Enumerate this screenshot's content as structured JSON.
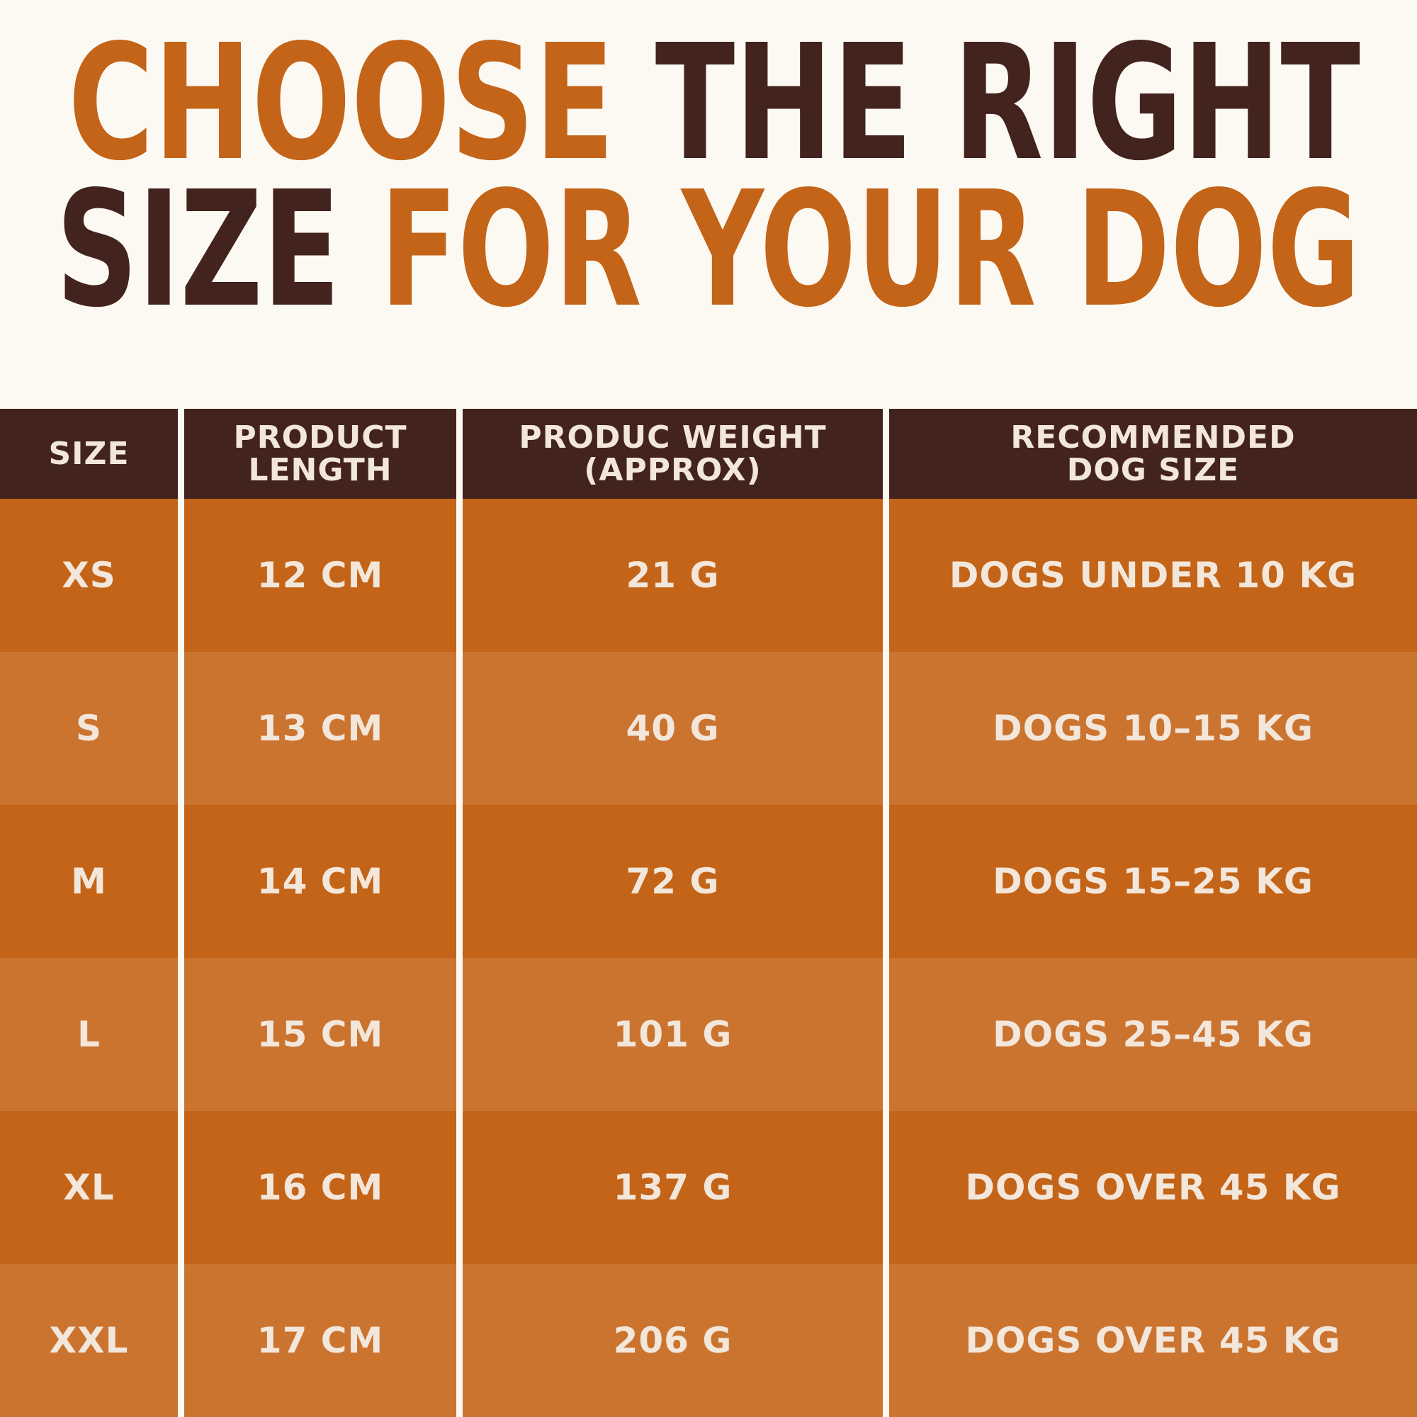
{
  "title": {
    "lines": [
      [
        {
          "text": "CHOOSE",
          "accent": true
        },
        {
          "text": "THE RIGHT",
          "accent": false
        }
      ],
      [
        {
          "text": "SIZE",
          "accent": false
        },
        {
          "text": "FOR YOUR DOG",
          "accent": true
        }
      ]
    ]
  },
  "table": {
    "header": [
      [
        "SIZE"
      ],
      [
        "PRODUCT",
        "LENGTH"
      ],
      [
        "PRODUC WEIGHT",
        "(APPROX)"
      ],
      [
        "RECOMMENDED",
        "DOG SIZE"
      ]
    ],
    "rows": [
      [
        "XS",
        "12 CM",
        "21 G",
        "DOGS UNDER 10 KG"
      ],
      [
        "S",
        "13 CM",
        "40 G",
        "DOGS 10–15 KG"
      ],
      [
        "M",
        "14 CM",
        "72 G",
        "DOGS 15–25 KG"
      ],
      [
        "L",
        "15 CM",
        "101 G",
        "DOGS 25–45 KG"
      ],
      [
        "XL",
        "16 CM",
        "137 G",
        "DOGS OVER 45 KG"
      ],
      [
        "XXL",
        "17 CM",
        "206 G",
        "DOGS OVER 45 KG"
      ]
    ]
  }
}
